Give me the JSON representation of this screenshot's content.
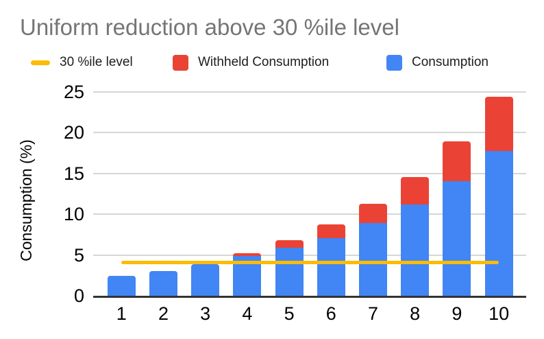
{
  "chart_data": {
    "type": "bar",
    "stacked": true,
    "title": "Uniform reduction above 30 %ile level",
    "xlabel": "",
    "ylabel": "Consumption (%)",
    "categories": [
      "1",
      "2",
      "3",
      "4",
      "5",
      "6",
      "7",
      "8",
      "9",
      "10"
    ],
    "series": [
      {
        "name": "Consumption",
        "color": "#4285F4",
        "values": [
          2.4,
          3.0,
          3.9,
          4.85,
          5.9,
          7.1,
          8.9,
          11.2,
          14.0,
          17.7
        ]
      },
      {
        "name": "Withheld Consumption",
        "color": "#EA4335",
        "values": [
          0,
          0,
          0,
          0.4,
          0.9,
          1.6,
          2.35,
          3.3,
          4.9,
          6.7
        ]
      }
    ],
    "threshold_line": {
      "name": "30 %ile level",
      "value": 4.1,
      "color": "#FBBC04"
    },
    "ylim": [
      0,
      25
    ],
    "yticks": [
      0,
      5,
      10,
      15,
      20,
      25
    ],
    "grid": "horizontal",
    "legend_position": "top",
    "title_color": "#757575",
    "gridline_color": "#d6d6d6",
    "axisline_color": "#333333"
  }
}
